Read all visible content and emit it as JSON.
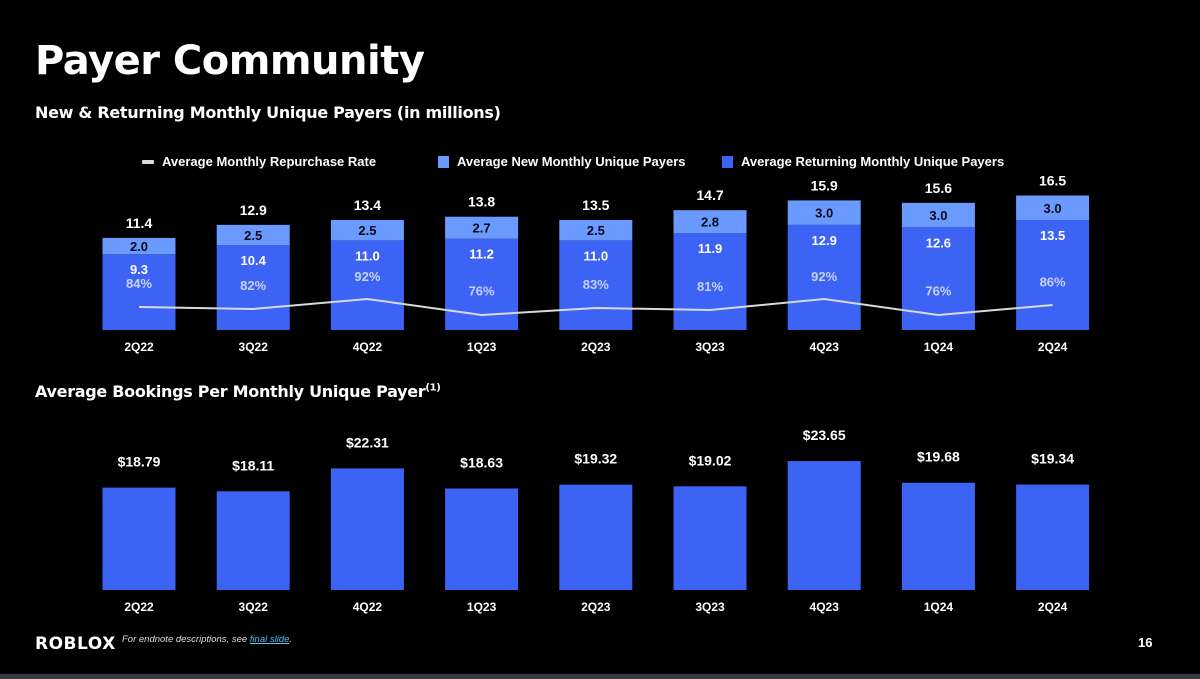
{
  "page": {
    "title": "Payer Community",
    "page_number": "16",
    "logo": "ROBLOX",
    "footnote_prefix": "For endnote descriptions, see ",
    "footnote_link": "final slide",
    "footnote_suffix": "."
  },
  "colors": {
    "returning": "#3d63f5",
    "new": "#6b9aff",
    "rate_line": "#d9d9d9",
    "bookings": "#3d63f5",
    "background": "#000000"
  },
  "chart_data": [
    {
      "type": "bar",
      "stacked": true,
      "title": "New & Returning Monthly Unique Payers (in millions)",
      "xlabel": "",
      "ylabel": "",
      "legend_position": "top",
      "grid": false,
      "categories": [
        "2Q22",
        "3Q22",
        "4Q22",
        "1Q23",
        "2Q23",
        "3Q23",
        "4Q23",
        "1Q24",
        "2Q24"
      ],
      "series": [
        {
          "name": "Average Returning Monthly Unique Payers",
          "values": [
            9.3,
            10.4,
            11.0,
            11.2,
            11.0,
            11.9,
            12.9,
            12.6,
            13.5
          ]
        },
        {
          "name": "Average New Monthly Unique Payers",
          "values": [
            2.0,
            2.5,
            2.5,
            2.7,
            2.5,
            2.8,
            3.0,
            3.0,
            3.0
          ]
        }
      ],
      "totals": [
        11.4,
        12.9,
        13.4,
        13.8,
        13.5,
        14.7,
        15.9,
        15.6,
        16.5
      ],
      "line_series": {
        "name": "Average Monthly Repurchase Rate",
        "values": [
          84,
          82,
          92,
          76,
          83,
          81,
          92,
          76,
          86
        ],
        "unit": "%"
      },
      "legend": [
        "Average Monthly Repurchase Rate",
        "Average New Monthly Unique Payers",
        "Average Returning Monthly Unique Payers"
      ]
    },
    {
      "type": "bar",
      "title": "Average Bookings Per Monthly Unique Payer",
      "title_superscript": "(1)",
      "xlabel": "",
      "ylabel": "",
      "grid": false,
      "categories": [
        "2Q22",
        "3Q22",
        "4Q22",
        "1Q23",
        "2Q23",
        "3Q23",
        "4Q23",
        "1Q24",
        "2Q24"
      ],
      "values": [
        18.79,
        18.11,
        22.31,
        18.63,
        19.32,
        19.02,
        23.65,
        19.68,
        19.34
      ],
      "value_prefix": "$"
    }
  ]
}
